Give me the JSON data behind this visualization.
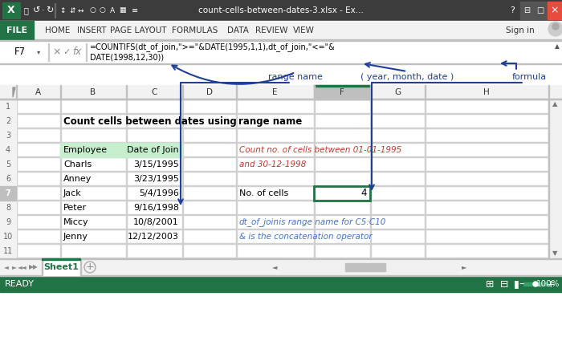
{
  "title_bar": "count-cells-between-dates-3.xlsx - Ex...",
  "formula_bar_cell": "F7",
  "formula_line1": "=COUNTIFS(dt_of_join,\">=\"&DATE(1995,1,1),dt_of_join,\"<=\"&",
  "formula_line2": "DATE(1998,12,30))",
  "sheet_title_b": "Count cells between dates using",
  "sheet_title_e": "range name",
  "headers": [
    "Employee",
    "Date of Join"
  ],
  "employees": [
    "Charls",
    "Anney",
    "Jack",
    "Peter",
    "Miccy",
    "Jenny"
  ],
  "dates": [
    "3/15/1995",
    "3/23/1995",
    "5/4/1996",
    "9/16/1998",
    "10/8/2001",
    "12/12/2003"
  ],
  "label_no_cells": "No. of cells",
  "value_cells": "4",
  "italic_text_line1": "Count no. of cells between 01-01-1995",
  "italic_text_line2": "and 30-12-1998",
  "note_line1a": "dt_of_join",
  "note_line1b": " is range name for C5:C10",
  "note_line2": "& is the concatenation operator",
  "annotation_range_name": "range name",
  "annotation_year_month": "( year, month, date )",
  "annotation_formula": "formula",
  "bg_color": "#FFFFFF",
  "header_bg": "#C6EFCE",
  "title_bar_bg": "#3C3C3C",
  "ribbon_file_bg": "#217346",
  "grid_color": "#D0D0D0",
  "blue_arrow": "#1F3F99",
  "note_blue": "#4472C4",
  "red_italic": "#C0392B",
  "selected_col_header": "#BFBFBF",
  "selected_row_header": "#BFBFBF",
  "col_F_bg": "#D9E1F2",
  "status_bar_bg": "#217346",
  "sheet_tab_color": "#217346"
}
